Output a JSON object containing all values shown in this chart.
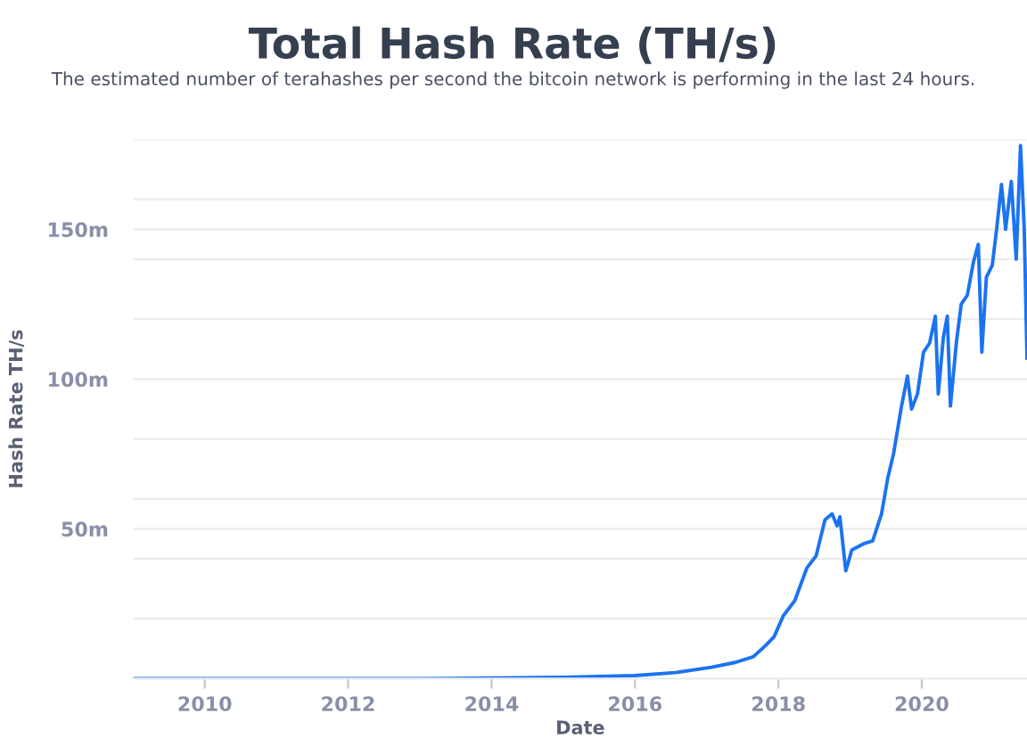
{
  "chart_data": {
    "type": "line",
    "title": "Total Hash Rate (TH/s)",
    "subtitle": "The estimated number of terahashes per second the bitcoin network is performing in the last 24 hours.",
    "xlabel": "Date",
    "ylabel": "Hash Rate TH/s",
    "series": [
      {
        "color": "#1b73f0",
        "x": [
          "2009-01-03",
          "2011-01-01",
          "2013-01-01",
          "2014-01-01",
          "2015-01-01",
          "2016-01-01",
          "2016-07-26",
          "2017-01-26",
          "2017-05-26",
          "2017-08-26",
          "2017-10-27",
          "2017-12-10",
          "2018-01-26",
          "2018-03-25",
          "2018-05-26",
          "2018-07-12",
          "2018-08-26",
          "2018-10-01",
          "2018-10-27",
          "2018-11-10",
          "2018-12-10",
          "2019-01-10",
          "2019-03-10",
          "2019-04-26",
          "2019-06-10",
          "2019-07-12",
          "2019-08-10",
          "2019-09-20",
          "2019-10-20",
          "2019-11-10",
          "2019-12-10",
          "2020-01-10",
          "2020-02-10",
          "2020-03-10",
          "2020-03-25",
          "2020-04-20",
          "2020-05-10",
          "2020-05-26",
          "2020-06-25",
          "2020-07-20",
          "2020-08-20",
          "2020-09-20",
          "2020-10-15",
          "2020-11-02",
          "2020-11-25",
          "2020-12-25",
          "2021-01-18",
          "2021-02-10",
          "2021-03-03",
          "2021-04-01",
          "2021-04-26",
          "2021-05-18",
          "2021-06-06",
          "2021-06-20"
        ],
        "values": [
          0,
          0,
          0,
          0.2,
          0.4,
          1.0,
          2,
          3.8,
          5.4,
          7.3,
          11,
          14,
          21,
          26,
          37,
          41,
          53,
          55,
          51,
          54,
          36,
          43,
          45,
          46,
          55,
          67,
          75,
          91,
          101,
          90,
          95,
          109,
          112,
          121,
          95,
          114,
          121,
          91,
          112,
          125,
          128,
          139,
          145,
          109,
          134,
          138,
          151,
          165,
          150,
          166,
          140,
          178,
          150,
          107
        ]
      }
    ],
    "xlim": [
      "2009-01-03",
      "2021-06-20"
    ],
    "xticks": [
      "2010",
      "2012",
      "2014",
      "2016",
      "2018",
      "2020"
    ],
    "ylim": [
      0,
      180
    ],
    "yticks": [
      {
        "value": 20,
        "label": null
      },
      {
        "value": 40,
        "label": null
      },
      {
        "value": 50,
        "label": "50m"
      },
      {
        "value": 60,
        "label": null
      },
      {
        "value": 80,
        "label": null
      },
      {
        "value": 100,
        "label": "100m"
      },
      {
        "value": 120,
        "label": null
      },
      {
        "value": 140,
        "label": null
      },
      {
        "value": 150,
        "label": "150m"
      },
      {
        "value": 160,
        "label": null
      },
      {
        "value": 180,
        "label": null
      }
    ],
    "grid": "y",
    "marker": "none",
    "line_style": "solid"
  }
}
